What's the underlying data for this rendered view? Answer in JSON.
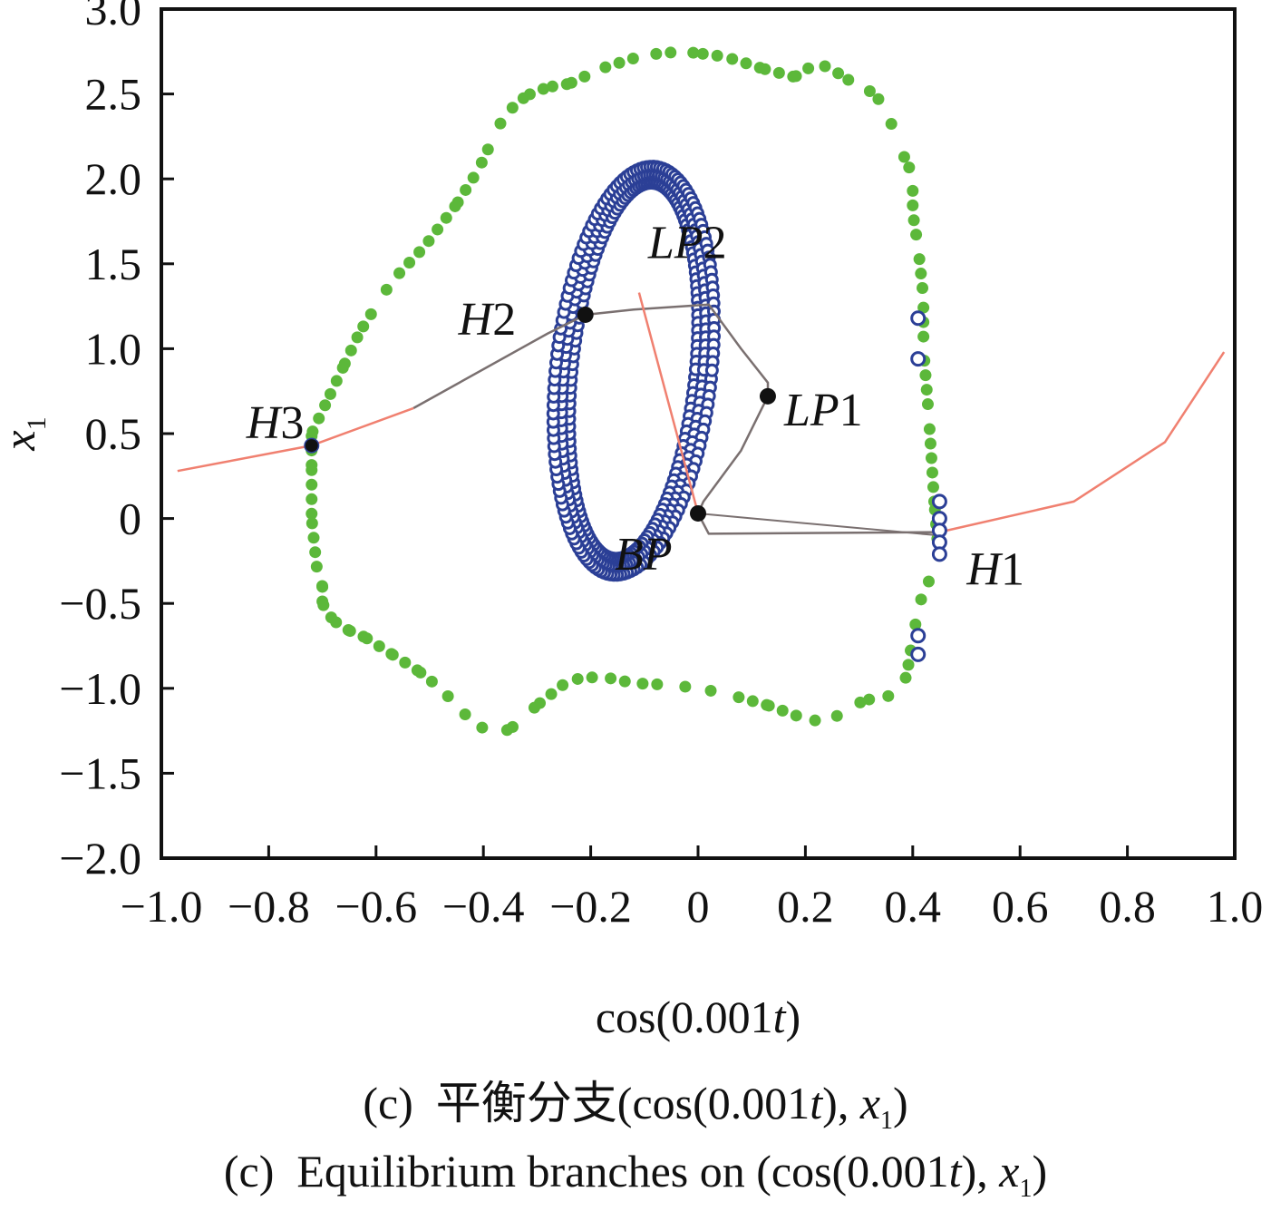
{
  "chart_data": {
    "type": "scatter",
    "xlabel": "cos(0.001t)",
    "ylabel": "x1",
    "xlim": [
      -1.0,
      1.0
    ],
    "ylim": [
      -2.0,
      3.0
    ],
    "xticks": [
      "−1.0",
      "−0.8",
      "−0.6",
      "−0.4",
      "−0.2",
      "0",
      "0.2",
      "0.4",
      "0.6",
      "0.8",
      "1.0"
    ],
    "yticks": [
      "3.0",
      "2.5",
      "2.0",
      "1.5",
      "1.0",
      "0.5",
      "0",
      "−0.5",
      "−1.0",
      "−1.5",
      "−2.0"
    ],
    "grid": false,
    "colors": {
      "outer_orbit": "#5cb83a",
      "inner_orbit": "#2b3f96",
      "unstable_branch": "#f08070",
      "stable_branch": "#7a7070",
      "special_point": "#111111",
      "hopf_marker": "#2b3f96"
    },
    "series": [
      {
        "role": "outer periodic orbit (green dots)",
        "x": [
          0.44,
          0.43,
          0.42,
          0.42,
          0.41,
          0.4,
          0.4,
          0.39,
          0.38,
          0.37,
          0.35,
          0.33,
          0.3,
          0.27,
          0.25,
          0.22,
          0.18,
          0.12,
          0.05,
          0.0,
          -0.03,
          -0.1,
          -0.18,
          -0.24,
          -0.28,
          -0.32,
          -0.36,
          -0.38,
          -0.41,
          -0.45,
          -0.51,
          -0.57,
          -0.63,
          -0.66,
          -0.69,
          -0.72,
          -0.72,
          -0.72,
          -0.71,
          -0.7,
          -0.7,
          -0.68,
          -0.65,
          -0.62,
          -0.57,
          -0.52,
          -0.48,
          -0.45,
          -0.42,
          -0.38,
          -0.35,
          -0.3,
          -0.24,
          -0.18,
          -0.12,
          -0.05,
          0.0,
          0.05,
          0.13,
          0.2,
          0.24,
          0.28,
          0.31,
          0.35,
          0.38,
          0.39,
          0.4,
          0.41,
          0.42,
          0.44,
          0.45
        ],
        "y": [
          0.1,
          0.6,
          1.0,
          1.3,
          1.6,
          1.8,
          2.0,
          2.1,
          2.15,
          2.25,
          2.4,
          2.5,
          2.55,
          2.6,
          2.65,
          2.68,
          2.6,
          2.65,
          2.72,
          2.74,
          2.75,
          2.73,
          2.65,
          2.56,
          2.54,
          2.49,
          2.38,
          2.25,
          2.05,
          1.85,
          1.6,
          1.4,
          1.1,
          0.9,
          0.7,
          0.5,
          0.3,
          0.0,
          -0.3,
          -0.4,
          -0.5,
          -0.6,
          -0.66,
          -0.7,
          -0.8,
          -0.9,
          -1.0,
          -1.1,
          -1.2,
          -1.27,
          -1.24,
          -1.1,
          -0.95,
          -0.93,
          -0.97,
          -0.98,
          -1.0,
          -1.03,
          -1.1,
          -1.18,
          -1.2,
          -1.12,
          -1.07,
          -1.05,
          -1.02,
          -0.9,
          -0.7,
          -0.55,
          -0.42,
          -0.32,
          -0.28
        ]
      },
      {
        "role": "inner periodic orbit (blue ring)",
        "center": [
          -0.12,
          0.87
        ],
        "half_width": 0.13,
        "half_height": 1.16,
        "tilt_deg": 6
      },
      {
        "role": "branch H3-H2 (red, gray)",
        "x": [
          -0.97,
          -0.72,
          -0.53,
          -0.28,
          -0.21
        ],
        "y": [
          0.28,
          0.43,
          0.65,
          1.09,
          1.2
        ]
      },
      {
        "role": "branch H2-LP1-BP (gray)",
        "x": [
          -0.21,
          -0.12,
          0.02,
          0.08,
          0.13,
          0.13,
          0.08,
          0.01,
          0.0
        ],
        "y": [
          1.2,
          1.23,
          1.26,
          1.0,
          0.8,
          0.72,
          0.4,
          0.1,
          0.03
        ]
      },
      {
        "role": "branch LP2-BP (red)",
        "x": [
          -0.11,
          0.0
        ],
        "y": [
          1.33,
          0.03
        ]
      },
      {
        "role": "branch BP-H1-right (gray, red)",
        "x": [
          0.0,
          0.02,
          0.45,
          0.7,
          0.87,
          0.98
        ],
        "y": [
          0.03,
          -0.09,
          -0.08,
          0.1,
          0.45,
          0.98
        ]
      }
    ],
    "special_points": [
      {
        "label": "H1",
        "x": 0.45,
        "y": -0.07
      },
      {
        "label": "H2",
        "x": -0.21,
        "y": 1.2
      },
      {
        "label": "H3",
        "x": -0.72,
        "y": 0.43
      },
      {
        "label": "LP1",
        "x": 0.13,
        "y": 0.72
      },
      {
        "label": "LP2",
        "x": -0.11,
        "y": 1.33
      },
      {
        "label": "BP",
        "x": 0.0,
        "y": 0.03
      }
    ]
  },
  "caption_cn": "(c)  平衡分支(cos(0.001t), x1)",
  "caption_en": "(c)  Equilibrium branches on (cos(0.001t), x1)"
}
